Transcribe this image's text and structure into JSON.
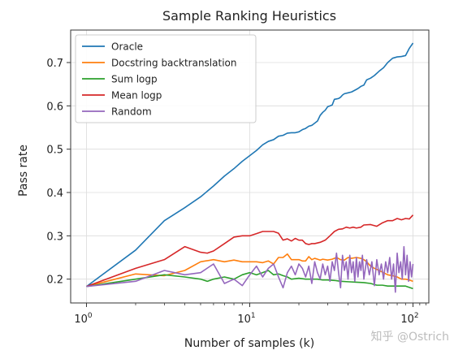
{
  "chart_data": {
    "type": "line",
    "title": "Sample Ranking Heuristics",
    "xlabel": "Number of samples (k)",
    "ylabel": "Pass rate",
    "xscale": "log",
    "xlim": [
      0.8,
      125
    ],
    "ylim": [
      0.145,
      0.775
    ],
    "xticks": [
      {
        "value": 1,
        "base": "10",
        "exp": "0"
      },
      {
        "value": 10,
        "base": "10",
        "exp": "1"
      },
      {
        "value": 100,
        "base": "10",
        "exp": "2"
      }
    ],
    "yticks": [
      0.2,
      0.3,
      0.4,
      0.5,
      0.6,
      0.7
    ],
    "ytick_labels": [
      "0.2",
      "0.3",
      "0.4",
      "0.5",
      "0.6",
      "0.7"
    ],
    "grid": true,
    "legend_position": "top-left",
    "series": [
      {
        "name": "Oracle",
        "color": "#1f77b4",
        "points": [
          [
            1,
            0.183
          ],
          [
            2,
            0.267
          ],
          [
            3,
            0.335
          ],
          [
            4,
            0.365
          ],
          [
            5,
            0.39
          ],
          [
            6,
            0.415
          ],
          [
            7,
            0.438
          ],
          [
            8,
            0.455
          ],
          [
            9,
            0.472
          ],
          [
            10,
            0.485
          ],
          [
            11,
            0.497
          ],
          [
            12,
            0.51
          ],
          [
            13,
            0.518
          ],
          [
            14,
            0.522
          ],
          [
            15,
            0.53
          ],
          [
            16,
            0.532
          ],
          [
            17,
            0.537
          ],
          [
            18,
            0.538
          ],
          [
            19,
            0.538
          ],
          [
            20,
            0.54
          ],
          [
            21,
            0.545
          ],
          [
            22,
            0.548
          ],
          [
            23,
            0.553
          ],
          [
            24,
            0.555
          ],
          [
            25,
            0.56
          ],
          [
            26,
            0.565
          ],
          [
            27,
            0.578
          ],
          [
            28,
            0.585
          ],
          [
            29,
            0.59
          ],
          [
            30,
            0.598
          ],
          [
            31,
            0.6
          ],
          [
            32,
            0.602
          ],
          [
            33,
            0.615
          ],
          [
            34,
            0.616
          ],
          [
            35,
            0.617
          ],
          [
            36,
            0.62
          ],
          [
            37,
            0.625
          ],
          [
            38,
            0.628
          ],
          [
            40,
            0.63
          ],
          [
            42,
            0.632
          ],
          [
            44,
            0.636
          ],
          [
            46,
            0.64
          ],
          [
            48,
            0.645
          ],
          [
            50,
            0.648
          ],
          [
            52,
            0.66
          ],
          [
            55,
            0.664
          ],
          [
            58,
            0.67
          ],
          [
            62,
            0.68
          ],
          [
            66,
            0.688
          ],
          [
            70,
            0.7
          ],
          [
            75,
            0.71
          ],
          [
            80,
            0.713
          ],
          [
            85,
            0.714
          ],
          [
            90,
            0.716
          ],
          [
            95,
            0.733
          ],
          [
            100,
            0.745
          ]
        ]
      },
      {
        "name": "Docstring backtranslation",
        "color": "#ff7f0e",
        "points": [
          [
            1,
            0.183
          ],
          [
            2,
            0.212
          ],
          [
            3,
            0.208
          ],
          [
            4,
            0.22
          ],
          [
            5,
            0.24
          ],
          [
            6,
            0.245
          ],
          [
            7,
            0.24
          ],
          [
            8,
            0.244
          ],
          [
            9,
            0.24
          ],
          [
            10,
            0.24
          ],
          [
            11,
            0.24
          ],
          [
            12,
            0.238
          ],
          [
            13,
            0.242
          ],
          [
            14,
            0.235
          ],
          [
            15,
            0.25
          ],
          [
            16,
            0.25
          ],
          [
            17,
            0.258
          ],
          [
            18,
            0.245
          ],
          [
            19,
            0.245
          ],
          [
            20,
            0.245
          ],
          [
            21,
            0.242
          ],
          [
            22,
            0.242
          ],
          [
            23,
            0.252
          ],
          [
            24,
            0.245
          ],
          [
            25,
            0.248
          ],
          [
            26,
            0.246
          ],
          [
            27,
            0.244
          ],
          [
            28,
            0.246
          ],
          [
            30,
            0.244
          ],
          [
            32,
            0.246
          ],
          [
            34,
            0.25
          ],
          [
            36,
            0.245
          ],
          [
            38,
            0.244
          ],
          [
            40,
            0.25
          ],
          [
            42,
            0.248
          ],
          [
            45,
            0.25
          ],
          [
            48,
            0.248
          ],
          [
            50,
            0.245
          ],
          [
            52,
            0.24
          ],
          [
            55,
            0.23
          ],
          [
            58,
            0.225
          ],
          [
            62,
            0.22
          ],
          [
            66,
            0.215
          ],
          [
            70,
            0.21
          ],
          [
            75,
            0.208
          ],
          [
            80,
            0.205
          ],
          [
            85,
            0.2
          ],
          [
            90,
            0.2
          ],
          [
            95,
            0.198
          ],
          [
            100,
            0.195
          ]
        ]
      },
      {
        "name": "Sum logp",
        "color": "#2ca02c",
        "points": [
          [
            1,
            0.183
          ],
          [
            2,
            0.2
          ],
          [
            3,
            0.21
          ],
          [
            4,
            0.205
          ],
          [
            5,
            0.2
          ],
          [
            5.5,
            0.195
          ],
          [
            6,
            0.2
          ],
          [
            7,
            0.205
          ],
          [
            8,
            0.2
          ],
          [
            9,
            0.21
          ],
          [
            10,
            0.215
          ],
          [
            11,
            0.21
          ],
          [
            12,
            0.215
          ],
          [
            13,
            0.22
          ],
          [
            14,
            0.21
          ],
          [
            15,
            0.212
          ],
          [
            16,
            0.208
          ],
          [
            17,
            0.205
          ],
          [
            18,
            0.2
          ],
          [
            20,
            0.202
          ],
          [
            22,
            0.2
          ],
          [
            24,
            0.2
          ],
          [
            26,
            0.2
          ],
          [
            28,
            0.198
          ],
          [
            30,
            0.198
          ],
          [
            33,
            0.197
          ],
          [
            36,
            0.195
          ],
          [
            40,
            0.194
          ],
          [
            45,
            0.193
          ],
          [
            50,
            0.192
          ],
          [
            55,
            0.19
          ],
          [
            60,
            0.186
          ],
          [
            65,
            0.186
          ],
          [
            70,
            0.184
          ],
          [
            80,
            0.184
          ],
          [
            90,
            0.184
          ],
          [
            100,
            0.178
          ]
        ]
      },
      {
        "name": "Mean logp",
        "color": "#d62728",
        "points": [
          [
            1,
            0.183
          ],
          [
            2,
            0.225
          ],
          [
            3,
            0.245
          ],
          [
            4,
            0.275
          ],
          [
            5,
            0.262
          ],
          [
            5.5,
            0.26
          ],
          [
            6,
            0.265
          ],
          [
            7,
            0.282
          ],
          [
            8,
            0.297
          ],
          [
            9,
            0.3
          ],
          [
            10,
            0.3
          ],
          [
            11,
            0.305
          ],
          [
            12,
            0.31
          ],
          [
            13,
            0.31
          ],
          [
            14,
            0.31
          ],
          [
            15,
            0.306
          ],
          [
            16,
            0.29
          ],
          [
            17,
            0.293
          ],
          [
            18,
            0.288
          ],
          [
            19,
            0.294
          ],
          [
            20,
            0.29
          ],
          [
            21,
            0.29
          ],
          [
            22,
            0.282
          ],
          [
            23,
            0.28
          ],
          [
            24,
            0.282
          ],
          [
            25,
            0.282
          ],
          [
            27,
            0.285
          ],
          [
            29,
            0.29
          ],
          [
            31,
            0.3
          ],
          [
            33,
            0.31
          ],
          [
            35,
            0.315
          ],
          [
            37,
            0.316
          ],
          [
            39,
            0.32
          ],
          [
            41,
            0.318
          ],
          [
            43,
            0.32
          ],
          [
            45,
            0.318
          ],
          [
            48,
            0.32
          ],
          [
            50,
            0.325
          ],
          [
            55,
            0.326
          ],
          [
            60,
            0.322
          ],
          [
            65,
            0.33
          ],
          [
            70,
            0.335
          ],
          [
            75,
            0.335
          ],
          [
            80,
            0.34
          ],
          [
            85,
            0.337
          ],
          [
            90,
            0.34
          ],
          [
            95,
            0.339
          ],
          [
            100,
            0.348
          ]
        ]
      },
      {
        "name": "Random",
        "color": "#9467bd",
        "points": [
          [
            1,
            0.183
          ],
          [
            2,
            0.195
          ],
          [
            3,
            0.22
          ],
          [
            4,
            0.21
          ],
          [
            5,
            0.215
          ],
          [
            6,
            0.235
          ],
          [
            7,
            0.19
          ],
          [
            8,
            0.2
          ],
          [
            9,
            0.185
          ],
          [
            10,
            0.21
          ],
          [
            11,
            0.23
          ],
          [
            12,
            0.205
          ],
          [
            13,
            0.225
          ],
          [
            14,
            0.235
          ],
          [
            15,
            0.205
          ],
          [
            16,
            0.18
          ],
          [
            17,
            0.215
          ],
          [
            18,
            0.23
          ],
          [
            19,
            0.21
          ],
          [
            20,
            0.235
          ],
          [
            21,
            0.225
          ],
          [
            22,
            0.205
          ],
          [
            23,
            0.23
          ],
          [
            24,
            0.19
          ],
          [
            25,
            0.24
          ],
          [
            26,
            0.215
          ],
          [
            27,
            0.2
          ],
          [
            28,
            0.235
          ],
          [
            29,
            0.21
          ],
          [
            30,
            0.23
          ],
          [
            31,
            0.195
          ],
          [
            32,
            0.24
          ],
          [
            33,
            0.22
          ],
          [
            34,
            0.26
          ],
          [
            35,
            0.215
          ],
          [
            36,
            0.18
          ],
          [
            37,
            0.255
          ],
          [
            38,
            0.22
          ],
          [
            39,
            0.24
          ],
          [
            40,
            0.2
          ],
          [
            41,
            0.255
          ],
          [
            42,
            0.215
          ],
          [
            43,
            0.24
          ],
          [
            44,
            0.195
          ],
          [
            45,
            0.25
          ],
          [
            46,
            0.205
          ],
          [
            47,
            0.24
          ],
          [
            48,
            0.22
          ],
          [
            49,
            0.255
          ],
          [
            50,
            0.2
          ],
          [
            52,
            0.245
          ],
          [
            54,
            0.21
          ],
          [
            56,
            0.24
          ],
          [
            58,
            0.185
          ],
          [
            60,
            0.245
          ],
          [
            62,
            0.21
          ],
          [
            64,
            0.235
          ],
          [
            66,
            0.2
          ],
          [
            68,
            0.24
          ],
          [
            70,
            0.215
          ],
          [
            72,
            0.25
          ],
          [
            74,
            0.2
          ],
          [
            76,
            0.235
          ],
          [
            78,
            0.17
          ],
          [
            80,
            0.26
          ],
          [
            82,
            0.215
          ],
          [
            84,
            0.24
          ],
          [
            86,
            0.2
          ],
          [
            88,
            0.275
          ],
          [
            90,
            0.21
          ],
          [
            92,
            0.255
          ],
          [
            94,
            0.195
          ],
          [
            96,
            0.24
          ],
          [
            98,
            0.205
          ],
          [
            100,
            0.235
          ]
        ]
      }
    ]
  },
  "watermark": "知乎 @Ostrich"
}
